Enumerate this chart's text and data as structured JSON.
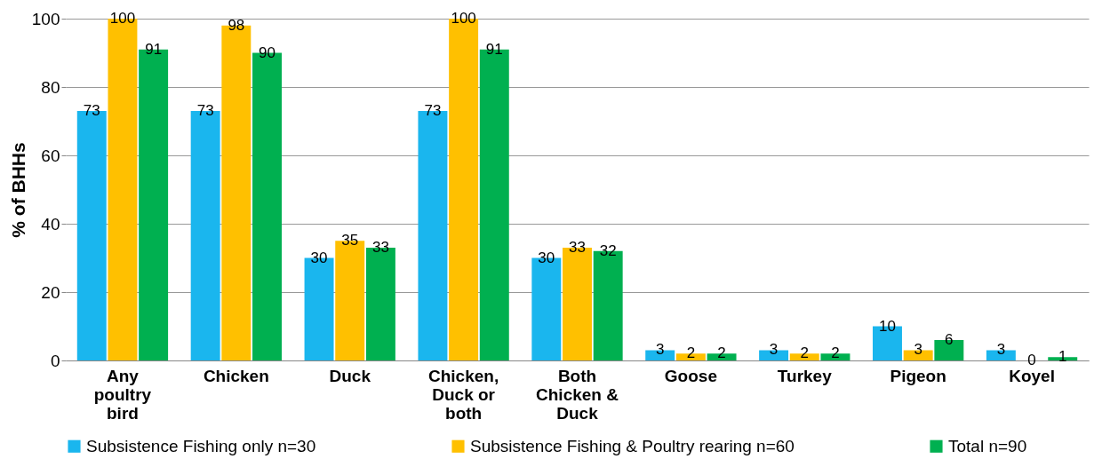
{
  "chart_data": {
    "type": "bar",
    "ylabel": "% of BHHs",
    "categories": [
      "Any poultry bird",
      "Chicken",
      "Duck",
      "Chicken, Duck or both",
      "Both Chicken & Duck",
      "Goose",
      "Turkey",
      "Pigeon",
      "Koyel"
    ],
    "series": [
      {
        "name": "Subsistence Fishing only n=30",
        "color": "#1ab6ee",
        "values": [
          73,
          73,
          30,
          73,
          30,
          3,
          3,
          10,
          3
        ]
      },
      {
        "name": "Subsistence Fishing & Poultry rearing n=60",
        "color": "#ffc000",
        "values": [
          100,
          98,
          35,
          100,
          33,
          2,
          2,
          3,
          0
        ]
      },
      {
        "name": "Total n=90",
        "color": "#00b050",
        "values": [
          91,
          90,
          33,
          91,
          32,
          2,
          2,
          6,
          1
        ]
      }
    ],
    "ylim": [
      0,
      100
    ],
    "yticks": [
      0,
      20,
      40,
      60,
      80,
      100
    ],
    "grid": "y",
    "legend": "bottom",
    "data_labels": true
  }
}
